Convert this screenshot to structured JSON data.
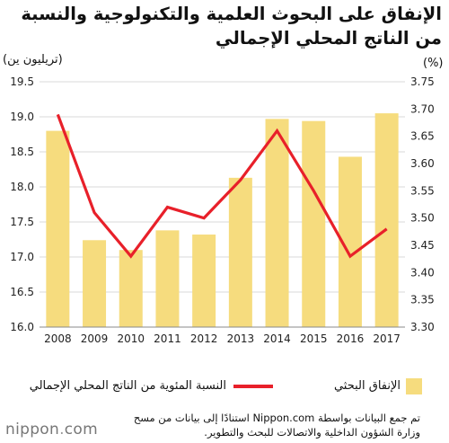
{
  "chart_data": {
    "type": "bar",
    "title": "الإنفاق على البحوث العلمية والتكنولوجية والنسبة من الناتج المحلي الإجمالي",
    "left_axis_unit": "(تريليون ين)",
    "right_axis_unit": "(%)",
    "categories": [
      "2008",
      "2009",
      "2010",
      "2011",
      "2012",
      "2013",
      "2014",
      "2015",
      "2016",
      "2017"
    ],
    "series": [
      {
        "name": "الإنفاق البحثي",
        "type": "bar",
        "axis": "left",
        "color": "#f6dc7e",
        "values": [
          18.8,
          17.24,
          17.1,
          17.38,
          17.32,
          18.13,
          18.97,
          18.94,
          18.43,
          19.05
        ]
      },
      {
        "name": "النسبة المئوية من الناتج المحلي الإجمالي",
        "type": "line",
        "axis": "right",
        "color": "#e8202a",
        "values": [
          3.69,
          3.51,
          3.43,
          3.52,
          3.5,
          3.57,
          3.66,
          3.55,
          3.43,
          3.48
        ]
      }
    ],
    "y_left": {
      "min": 16.0,
      "max": 19.5,
      "ticks": [
        "16.0",
        "16.5",
        "17.0",
        "17.5",
        "18.0",
        "18.5",
        "19.0",
        "19.5"
      ]
    },
    "y_right": {
      "min": 3.3,
      "max": 3.75,
      "ticks": [
        "3.30",
        "3.35",
        "3.40",
        "3.45",
        "3.50",
        "3.55",
        "3.60",
        "3.65",
        "3.70",
        "3.75"
      ]
    },
    "grid": true,
    "legend_position": "bottom"
  },
  "footer": {
    "logo_main": "nippon",
    "logo_sep": ".",
    "logo_tld": "com",
    "source_line1": "تم جمع البيانات بواسطة Nippon.com استنادًا إلى بيانات من مسح",
    "source_line2": "وزارة الشؤون الداخلية والاتصالات للبحث والتطوير."
  }
}
